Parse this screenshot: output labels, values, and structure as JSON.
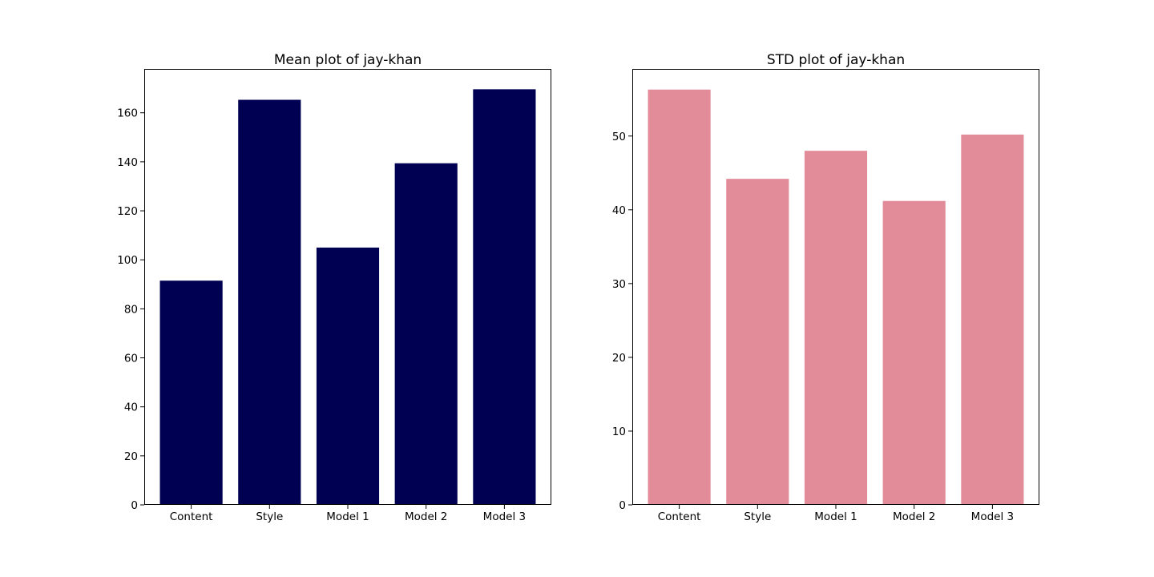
{
  "chart_data": [
    {
      "type": "bar",
      "title": "Mean plot of jay-khan",
      "xlabel": "",
      "ylabel": "",
      "categories": [
        "Content",
        "Style",
        "Model 1",
        "Model 2",
        "Model 3"
      ],
      "values": [
        91.5,
        165.3,
        105.0,
        139.4,
        169.6
      ],
      "ylim": [
        0,
        177.9
      ],
      "yticks": [
        0,
        20,
        40,
        60,
        80,
        100,
        120,
        140,
        160
      ],
      "color": "#000052",
      "grid": false
    },
    {
      "type": "bar",
      "title": "STD plot of jay-khan",
      "xlabel": "",
      "ylabel": "",
      "categories": [
        "Content",
        "Style",
        "Model 1",
        "Model 2",
        "Model 3"
      ],
      "values": [
        56.3,
        44.2,
        48.0,
        41.2,
        50.2
      ],
      "ylim": [
        0,
        59.1
      ],
      "yticks": [
        0,
        10,
        20,
        30,
        40,
        50
      ],
      "color": "#e28c9a",
      "grid": false
    }
  ]
}
